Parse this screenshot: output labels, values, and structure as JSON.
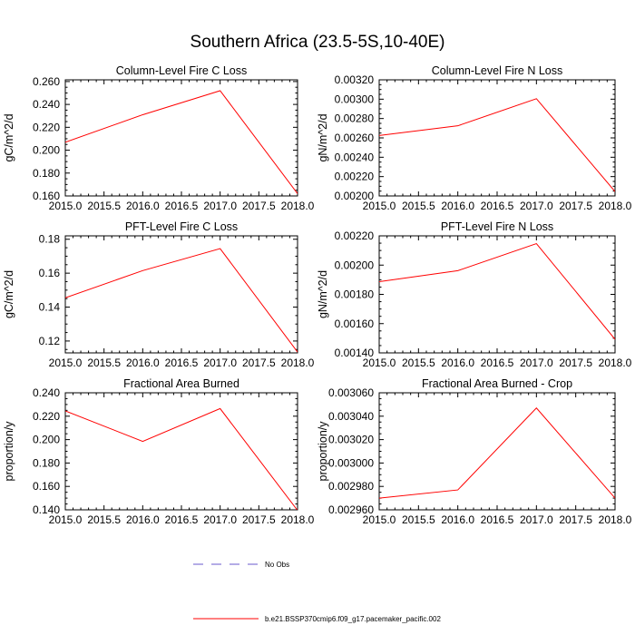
{
  "title": "Southern Africa (23.5-5S,10-40E)",
  "legend": {
    "items": [
      {
        "label": "No Obs",
        "color": "#6a5acd",
        "dash": true
      },
      {
        "label": "b.e21.BSSP370cmip6.f09_g17.pacemaker_pacific.002",
        "color": "#ff0000",
        "dash": false
      }
    ]
  },
  "chart_data": [
    {
      "type": "line",
      "title": "Column-Level Fire C Loss",
      "ylabel": "gC/m^2/d",
      "xlim": [
        2015.0,
        2018.0
      ],
      "xticks": [
        "2015.0",
        "2015.5",
        "2016.0",
        "2016.5",
        "2017.0",
        "2017.5",
        "2018.0"
      ],
      "ylim": [
        0.16,
        0.2615
      ],
      "yticks": [
        "0.160",
        "0.180",
        "0.200",
        "0.220",
        "0.240",
        "0.260"
      ],
      "series": [
        {
          "color": "#ff0000",
          "x": [
            2015,
            2016,
            2017,
            2018
          ],
          "y": [
            0.207,
            0.231,
            0.252,
            0.162
          ]
        }
      ]
    },
    {
      "type": "line",
      "title": "Column-Level Fire N Loss",
      "ylabel": "gN/m^2/d",
      "xlim": [
        2015.0,
        2018.0
      ],
      "xticks": [
        "2015.0",
        "2015.5",
        "2016.0",
        "2016.5",
        "2017.0",
        "2017.5",
        "2018.0"
      ],
      "ylim": [
        0.002,
        0.0032
      ],
      "yticks": [
        "0.00200",
        "0.00220",
        "0.00240",
        "0.00260",
        "0.00280",
        "0.00300",
        "0.00320"
      ],
      "series": [
        {
          "color": "#ff0000",
          "x": [
            2015,
            2016,
            2017,
            2018
          ],
          "y": [
            0.002625,
            0.002725,
            0.003005,
            0.002045
          ]
        }
      ]
    },
    {
      "type": "line",
      "title": "PFT-Level Fire C Loss",
      "ylabel": "gC/m^2/d",
      "xlim": [
        2015.0,
        2018.0
      ],
      "xticks": [
        "2015.0",
        "2015.5",
        "2016.0",
        "2016.5",
        "2017.0",
        "2017.5",
        "2018.0"
      ],
      "ylim": [
        0.113,
        0.182
      ],
      "yticks": [
        "0.12",
        "0.14",
        "0.16",
        "0.18"
      ],
      "series": [
        {
          "color": "#ff0000",
          "x": [
            2015,
            2016,
            2017,
            2018
          ],
          "y": [
            0.1455,
            0.1615,
            0.1745,
            0.1135
          ]
        }
      ]
    },
    {
      "type": "line",
      "title": "PFT-Level Fire N Loss",
      "ylabel": "gN/m^2/d",
      "xlim": [
        2015.0,
        2018.0
      ],
      "xticks": [
        "2015.0",
        "2015.5",
        "2016.0",
        "2016.5",
        "2017.0",
        "2017.5",
        "2018.0"
      ],
      "ylim": [
        0.0014,
        0.0022
      ],
      "yticks": [
        "0.00140",
        "0.00160",
        "0.00180",
        "0.00200",
        "0.00220"
      ],
      "series": [
        {
          "color": "#ff0000",
          "x": [
            2015,
            2016,
            2017,
            2018
          ],
          "y": [
            0.001887,
            0.001962,
            0.002147,
            0.001493
          ]
        }
      ]
    },
    {
      "type": "line",
      "title": "Fractional Area Burned",
      "ylabel": "proportion/y",
      "xlim": [
        2015.0,
        2018.0
      ],
      "xticks": [
        "2015.0",
        "2015.5",
        "2016.0",
        "2016.5",
        "2017.0",
        "2017.5",
        "2018.0"
      ],
      "ylim": [
        0.14,
        0.24
      ],
      "yticks": [
        "0.140",
        "0.160",
        "0.180",
        "0.200",
        "0.220",
        "0.240"
      ],
      "series": [
        {
          "color": "#ff0000",
          "x": [
            2015,
            2016,
            2017,
            2018
          ],
          "y": [
            0.2245,
            0.1985,
            0.2265,
            0.1395
          ]
        }
      ]
    },
    {
      "type": "line",
      "title": "Fractional Area Burned - Crop",
      "ylabel": "proportion/y",
      "xlim": [
        2015.0,
        2018.0
      ],
      "xticks": [
        "2015.0",
        "2015.5",
        "2016.0",
        "2016.5",
        "2017.0",
        "2017.5",
        "2018.0"
      ],
      "ylim": [
        0.00296,
        0.00306
      ],
      "yticks": [
        "0.002960",
        "0.002980",
        "0.003000",
        "0.003020",
        "0.003040",
        "0.003060"
      ],
      "series": [
        {
          "color": "#ff0000",
          "x": [
            2015,
            2016,
            2017,
            2018
          ],
          "y": [
            0.00297,
            0.002977,
            0.003047,
            0.00297
          ]
        }
      ]
    }
  ]
}
